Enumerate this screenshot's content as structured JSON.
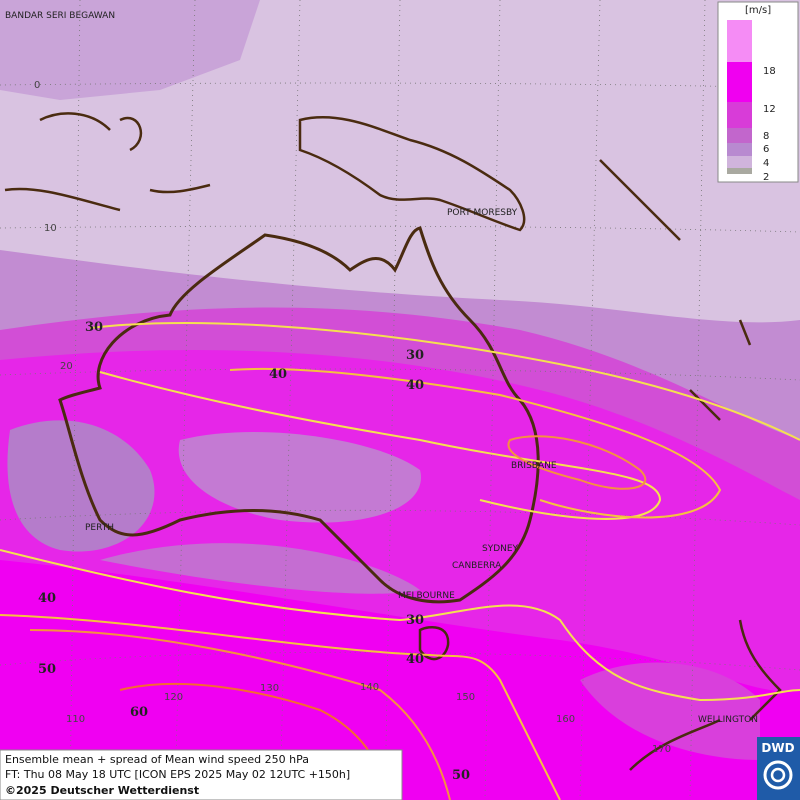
{
  "legend": {
    "unit": "[m/s]",
    "ticks": [
      2,
      4,
      6,
      8,
      12,
      18
    ]
  },
  "cities": [
    "BANDAR SERI BEGAWAN",
    "PORT MORESBY",
    "BRISBANE",
    "SYDNEY",
    "CANBERRA",
    "MELBOURNE",
    "PERTH",
    "WELLINGTON"
  ],
  "grid_labels": {
    "lat": [
      0,
      10,
      20
    ],
    "lon": [
      110,
      120,
      130,
      140,
      150,
      160,
      170
    ]
  },
  "contour_labels": [
    30,
    30,
    40,
    40,
    30,
    40,
    40,
    50,
    60,
    50
  ],
  "footer": {
    "line1": "Ensemble mean + spread of Mean wind speed 250 hPa",
    "line2": "FT: Thu 08 May 18 UTC [ICON EPS 2025 May 02 12UTC +150h]",
    "line3": "©2025 Deutscher Wetterdienst"
  },
  "logo": "DWD"
}
